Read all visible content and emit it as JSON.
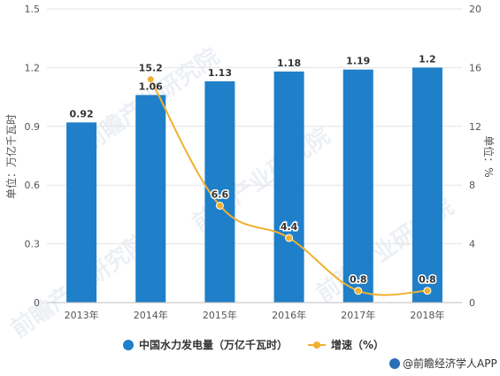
{
  "chart_data": {
    "type": "bar",
    "categories": [
      "2013年",
      "2014年",
      "2015年",
      "2016年",
      "2017年",
      "2018年"
    ],
    "series": [
      {
        "name": "中国水力发电量（万亿千瓦时）",
        "type": "bar",
        "axis": "left",
        "values": [
          0.92,
          1.06,
          1.13,
          1.18,
          1.19,
          1.2
        ],
        "labels": [
          "0.92",
          "1.06",
          "1.13",
          "1.18",
          "1.19",
          "1.2"
        ],
        "color": "#1f7fc9"
      },
      {
        "name": "增速（%）",
        "type": "line",
        "axis": "right",
        "values": [
          null,
          15.2,
          6.6,
          4.4,
          0.8,
          0.8
        ],
        "labels": [
          "",
          "15.2",
          "6.6",
          "4.4",
          "0.8",
          "0.8"
        ],
        "color": "#f0b030"
      }
    ],
    "ylabel": "单位：万亿千瓦时",
    "y2label": "单位：%",
    "ylim": [
      0,
      1.5
    ],
    "y2lim": [
      0,
      20
    ],
    "yticks": [
      "0",
      "0.3",
      "0.6",
      "0.9",
      "1.2",
      "1.5"
    ],
    "y2ticks": [
      "0",
      "4",
      "8",
      "12",
      "16",
      "20"
    ],
    "grid": true,
    "legend_position": "bottom"
  },
  "watermark": "前瞻产业研究院",
  "source": "@前瞻经济学人APP"
}
